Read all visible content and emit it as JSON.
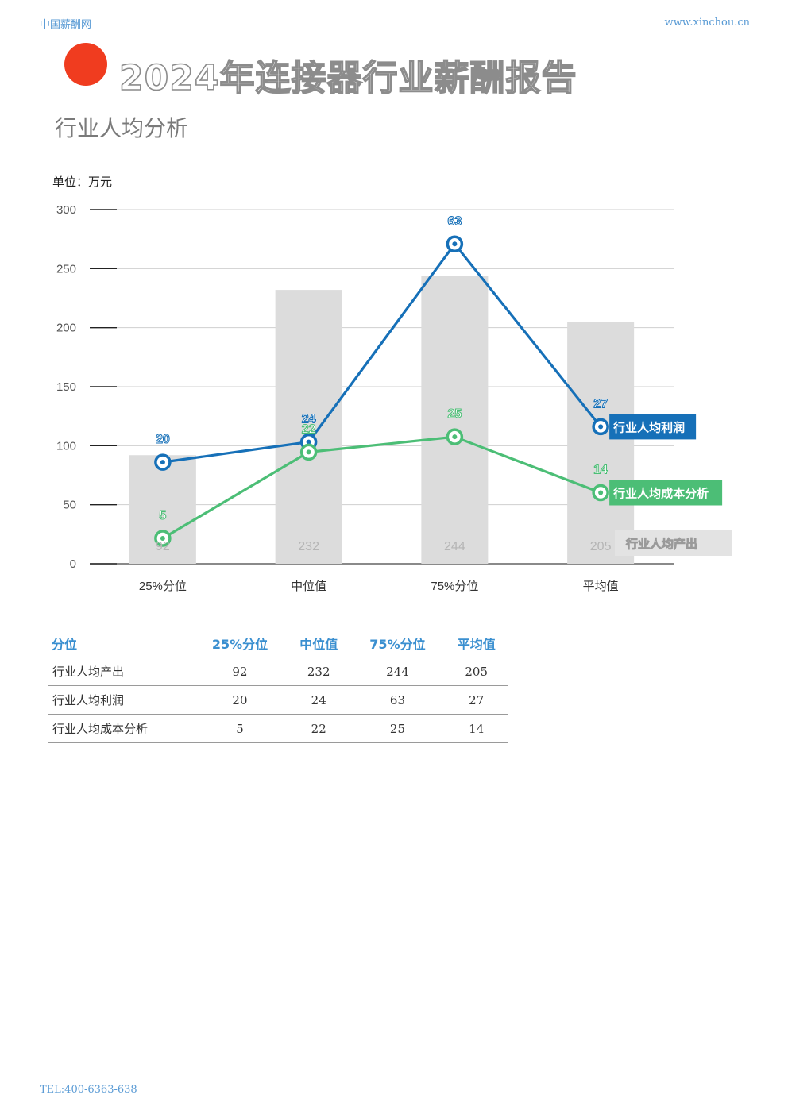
{
  "header": {
    "site_name": "中国薪酬网",
    "site_url": "www.xinchou.cn"
  },
  "report_title": "2024年连接器行业薪酬报告",
  "section_title": "行业人均分析",
  "unit_label": "单位：万元",
  "colors": {
    "bars": "#dcdcdc",
    "profit": "#1670b8",
    "cost": "#4cbe76",
    "accent_dot": "#f03c1f",
    "table_header": "#3a8fd0"
  },
  "chart_data": {
    "type": "bar+line",
    "categories": [
      "25%分位",
      "中位值",
      "75%分位",
      "平均值"
    ],
    "y_axis": {
      "min": 0,
      "max": 300,
      "ticks": [
        0,
        50,
        100,
        150,
        200,
        250,
        300
      ]
    },
    "bar_series": {
      "name": "行业人均产出",
      "values": [
        92,
        232,
        244,
        205
      ],
      "labels": [
        "92",
        "232",
        "244",
        "205"
      ]
    },
    "line_series": [
      {
        "name": "行业人均利润",
        "values": [
          20,
          24,
          63,
          27
        ],
        "labels": [
          "20",
          "24",
          "63",
          "27"
        ],
        "scale": 4.3
      },
      {
        "name": "行业人均成本分析",
        "values": [
          5,
          22,
          25,
          14
        ],
        "labels": [
          "5",
          "22",
          "25",
          "14"
        ],
        "scale": 4.3
      }
    ],
    "legend_placement": "right-inline",
    "grid": true
  },
  "table": {
    "headers": [
      "分位",
      "25%分位",
      "中位值",
      "75%分位",
      "平均值"
    ],
    "rows": [
      [
        "行业人均产出",
        "92",
        "232",
        "244",
        "205"
      ],
      [
        "行业人均利润",
        "20",
        "24",
        "63",
        "27"
      ],
      [
        "行业人均成本分析",
        "5",
        "22",
        "25",
        "14"
      ]
    ]
  },
  "footer": {
    "tel": "TEL:400-6363-638"
  }
}
